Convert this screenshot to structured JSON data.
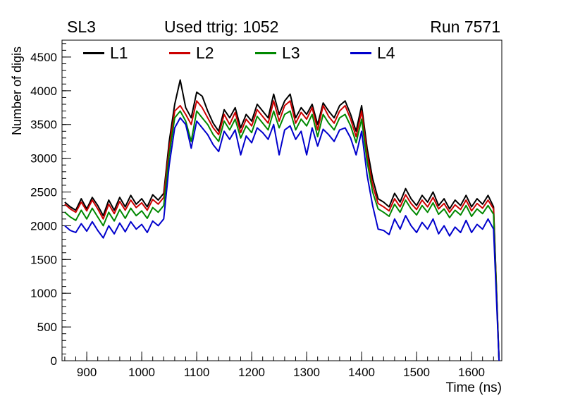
{
  "titles": {
    "left": "SL3",
    "center": "Used ttrig: 1052",
    "right": "Run 7571"
  },
  "chart_data": {
    "type": "line",
    "title": "Used ttrig: 1052",
    "xlabel": "Time (ns)",
    "ylabel": "Number of digis",
    "xlim": [
      855,
      1655
    ],
    "ylim": [
      0,
      4750
    ],
    "xticks": [
      900,
      1000,
      1100,
      1200,
      1300,
      1400,
      1500,
      1600
    ],
    "yticks": [
      0,
      500,
      1000,
      1500,
      2000,
      2500,
      3000,
      3500,
      4000,
      4500
    ],
    "x_minor_step": 20,
    "y_minor_step": 100,
    "grid": false,
    "legend_position": "top-inside",
    "x": [
      860,
      870,
      880,
      890,
      900,
      910,
      920,
      930,
      940,
      950,
      960,
      970,
      980,
      990,
      1000,
      1010,
      1020,
      1030,
      1040,
      1050,
      1060,
      1070,
      1080,
      1090,
      1100,
      1110,
      1120,
      1130,
      1140,
      1150,
      1160,
      1170,
      1180,
      1190,
      1200,
      1210,
      1220,
      1230,
      1240,
      1250,
      1260,
      1270,
      1280,
      1290,
      1300,
      1310,
      1320,
      1330,
      1340,
      1350,
      1360,
      1370,
      1380,
      1390,
      1400,
      1410,
      1420,
      1430,
      1440,
      1450,
      1460,
      1470,
      1480,
      1490,
      1500,
      1510,
      1520,
      1530,
      1540,
      1550,
      1560,
      1570,
      1580,
      1590,
      1600,
      1610,
      1620,
      1630,
      1640,
      1650
    ],
    "series": [
      {
        "name": "L1",
        "color": "#000000",
        "values": [
          2350,
          2280,
          2230,
          2400,
          2250,
          2420,
          2300,
          2150,
          2380,
          2230,
          2420,
          2280,
          2450,
          2320,
          2400,
          2280,
          2460,
          2380,
          2480,
          3250,
          3800,
          4160,
          3750,
          3600,
          3980,
          3920,
          3700,
          3520,
          3400,
          3720,
          3600,
          3750,
          3450,
          3650,
          3550,
          3800,
          3700,
          3600,
          3950,
          3650,
          3850,
          3950,
          3600,
          3750,
          3650,
          3800,
          3500,
          3820,
          3700,
          3600,
          3780,
          3850,
          3650,
          3400,
          3780,
          3150,
          2700,
          2400,
          2350,
          2280,
          2480,
          2350,
          2550,
          2400,
          2300,
          2450,
          2350,
          2500,
          2300,
          2400,
          2250,
          2380,
          2300,
          2450,
          2280,
          2400,
          2320,
          2450,
          2280,
          0
        ]
      },
      {
        "name": "L2",
        "color": "#cc0000",
        "values": [
          2320,
          2250,
          2200,
          2350,
          2220,
          2380,
          2250,
          2100,
          2320,
          2180,
          2360,
          2230,
          2380,
          2270,
          2340,
          2230,
          2390,
          2320,
          2420,
          3150,
          3700,
          3780,
          3650,
          3500,
          3850,
          3750,
          3600,
          3450,
          3350,
          3650,
          3500,
          3680,
          3380,
          3580,
          3480,
          3720,
          3620,
          3520,
          3850,
          3550,
          3780,
          3850,
          3520,
          3680,
          3580,
          3750,
          3420,
          3780,
          3620,
          3520,
          3700,
          3780,
          3580,
          3320,
          3700,
          3050,
          2600,
          2330,
          2280,
          2220,
          2400,
          2280,
          2460,
          2330,
          2240,
          2380,
          2280,
          2420,
          2250,
          2330,
          2200,
          2310,
          2240,
          2380,
          2220,
          2330,
          2260,
          2380,
          2250,
          0
        ]
      },
      {
        "name": "L3",
        "color": "#008800",
        "values": [
          2200,
          2130,
          2080,
          2230,
          2100,
          2260,
          2130,
          2000,
          2200,
          2070,
          2240,
          2110,
          2260,
          2150,
          2220,
          2110,
          2270,
          2200,
          2300,
          3050,
          3600,
          3700,
          3550,
          3250,
          3700,
          3600,
          3500,
          3350,
          3250,
          3550,
          3420,
          3580,
          3300,
          3480,
          3380,
          3620,
          3520,
          3420,
          3700,
          3450,
          3650,
          3700,
          3420,
          3580,
          3480,
          3650,
          3320,
          3650,
          3520,
          3420,
          3600,
          3650,
          3480,
          3230,
          3580,
          2950,
          2500,
          2250,
          2200,
          2140,
          2320,
          2200,
          2380,
          2250,
          2160,
          2300,
          2200,
          2340,
          2170,
          2250,
          2120,
          2230,
          2160,
          2300,
          2140,
          2250,
          2180,
          2300,
          2170,
          0
        ]
      },
      {
        "name": "L4",
        "color": "#0000cc",
        "values": [
          2000,
          1930,
          1900,
          2030,
          1920,
          2060,
          1930,
          1820,
          2000,
          1880,
          2040,
          1910,
          2060,
          1950,
          2020,
          1900,
          2070,
          2000,
          2100,
          2900,
          3450,
          3600,
          3500,
          3150,
          3550,
          3450,
          3350,
          3200,
          3100,
          3400,
          3280,
          3420,
          3050,
          3330,
          3230,
          3450,
          3380,
          3280,
          3500,
          3050,
          3420,
          3480,
          3280,
          3400,
          3050,
          3450,
          3180,
          3430,
          3350,
          3250,
          3420,
          3450,
          3300,
          3050,
          3400,
          2750,
          2300,
          1950,
          1930,
          1870,
          2100,
          1950,
          2150,
          2000,
          1900,
          2050,
          1950,
          2100,
          1880,
          2000,
          1850,
          1980,
          1900,
          2080,
          1900,
          2020,
          1950,
          2100,
          1950,
          0
        ]
      }
    ]
  }
}
